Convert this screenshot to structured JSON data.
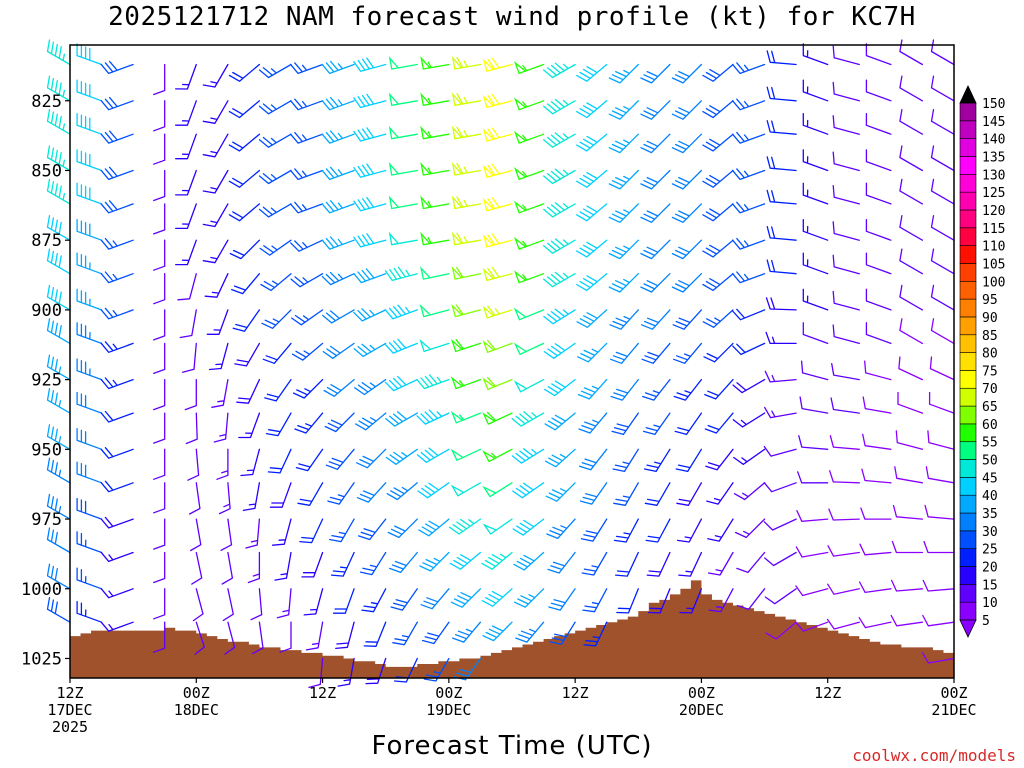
{
  "title": "2025121712 NAM forecast wind profile (kt) for KC7H",
  "xlabel": "Forecast Time (UTC)",
  "credit": "coolwx.com/models",
  "colors": {
    "ground": "#a0522d",
    "bins": [
      "#8a00ff",
      "#6000ff",
      "#2800ff",
      "#0020ff",
      "#0050ff",
      "#0080ff",
      "#00a8ff",
      "#00d0ff",
      "#00e8d8",
      "#00ff80",
      "#20ff00",
      "#80ff00",
      "#d0ff00",
      "#ffff00",
      "#ffe000",
      "#ffc000",
      "#ffa000",
      "#ff8000",
      "#ff6000",
      "#ff4000",
      "#ff1000",
      "#ff0040",
      "#ff0080",
      "#ff00b0",
      "#ff00d8",
      "#ff00ff",
      "#e000e0",
      "#c000c0",
      "#a000a0",
      "#800080"
    ]
  },
  "chart_data": {
    "type": "wind_barb_time_height",
    "title": "2025121712 NAM forecast wind profile (kt) for KC7H",
    "xlabel": "Forecast Time (UTC)",
    "units": "kt",
    "x_range_hours": [
      0,
      84
    ],
    "y_range_hpa": [
      805,
      1032
    ],
    "y_inverted": true,
    "x_ticks": [
      {
        "hour": 0,
        "line1": "12Z",
        "line2": "17DEC",
        "line3": "2025"
      },
      {
        "hour": 12,
        "line1": "00Z",
        "line2": "18DEC",
        "line3": ""
      },
      {
        "hour": 24,
        "line1": "12Z",
        "line2": "",
        "line3": ""
      },
      {
        "hour": 36,
        "line1": "00Z",
        "line2": "19DEC",
        "line3": ""
      },
      {
        "hour": 48,
        "line1": "12Z",
        "line2": "",
        "line3": ""
      },
      {
        "hour": 60,
        "line1": "00Z",
        "line2": "20DEC",
        "line3": ""
      },
      {
        "hour": 72,
        "line1": "12Z",
        "line2": "",
        "line3": ""
      },
      {
        "hour": 84,
        "line1": "00Z",
        "line2": "21DEC",
        "line3": ""
      }
    ],
    "y_ticks": [
      825,
      850,
      875,
      900,
      925,
      950,
      975,
      1000,
      1025
    ],
    "colorbar_levels": [
      5,
      10,
      15,
      20,
      25,
      30,
      35,
      40,
      45,
      50,
      55,
      60,
      65,
      70,
      75,
      80,
      85,
      90,
      95,
      100,
      105,
      110,
      115,
      120,
      125,
      130,
      135,
      140,
      145,
      150
    ],
    "surface_pressure": {
      "hours": [
        0,
        1,
        2,
        3,
        4,
        5,
        6,
        7,
        8,
        9,
        10,
        11,
        12,
        13,
        14,
        15,
        16,
        17,
        18,
        19,
        20,
        21,
        22,
        23,
        24,
        25,
        26,
        27,
        28,
        29,
        30,
        31,
        32,
        33,
        34,
        35,
        36,
        37,
        38,
        39,
        40,
        41,
        42,
        43,
        44,
        45,
        46,
        47,
        48,
        49,
        50,
        51,
        52,
        53,
        54,
        55,
        56,
        57,
        58,
        59,
        60,
        61,
        62,
        63,
        64,
        65,
        66,
        67,
        68,
        69,
        70,
        71,
        72,
        73,
        74,
        75,
        76,
        77,
        78,
        79,
        80,
        81,
        82,
        83,
        84
      ],
      "hpa": [
        1017,
        1016,
        1015,
        1015,
        1015,
        1015,
        1015,
        1015,
        1015,
        1014,
        1015,
        1015,
        1016,
        1017,
        1018,
        1019,
        1019,
        1020,
        1021,
        1021,
        1022,
        1022,
        1023,
        1023,
        1024,
        1024,
        1025,
        1026,
        1026,
        1027,
        1028,
        1028,
        1028,
        1027,
        1027,
        1026,
        1026,
        1025,
        1025,
        1024,
        1023,
        1022,
        1021,
        1020,
        1019,
        1018,
        1017,
        1016,
        1015,
        1014,
        1013,
        1012,
        1011,
        1010,
        1008,
        1005,
        1004,
        1002,
        1000,
        997,
        1002,
        1004,
        1005,
        1006,
        1007,
        1008,
        1009,
        1010,
        1011,
        1012,
        1013,
        1014,
        1015,
        1016,
        1017,
        1018,
        1019,
        1020,
        1020,
        1021,
        1021,
        1021,
        1022,
        1023,
        1023
      ]
    },
    "time_hours": [
      0,
      3,
      6,
      9,
      12,
      15,
      18,
      21,
      24,
      27,
      30,
      33,
      36,
      39,
      42,
      45,
      48,
      51,
      54,
      57,
      60,
      63,
      66,
      69,
      72,
      75,
      78,
      81,
      84
    ],
    "levels_hpa": [
      812,
      825,
      837,
      850,
      862,
      875,
      887,
      900,
      912,
      925,
      937,
      950,
      962,
      975,
      987,
      1000,
      1012,
      1025
    ],
    "speed_kt": [
      [
        45,
        40,
        28,
        10,
        15,
        15,
        20,
        25,
        25,
        35,
        40,
        50,
        55,
        65,
        70,
        55,
        45,
        40,
        35,
        32,
        30,
        28,
        25,
        20,
        15,
        12,
        10,
        10,
        10
      ],
      [
        45,
        40,
        28,
        10,
        15,
        15,
        20,
        25,
        25,
        35,
        40,
        50,
        55,
        65,
        70,
        55,
        45,
        40,
        35,
        32,
        30,
        28,
        25,
        20,
        15,
        12,
        10,
        10,
        10
      ],
      [
        45,
        40,
        28,
        10,
        15,
        15,
        20,
        25,
        25,
        35,
        40,
        50,
        55,
        65,
        70,
        55,
        45,
        40,
        35,
        32,
        30,
        28,
        25,
        20,
        15,
        12,
        10,
        10,
        10
      ],
      [
        45,
        40,
        28,
        10,
        15,
        15,
        20,
        25,
        25,
        35,
        40,
        50,
        55,
        65,
        70,
        55,
        45,
        40,
        35,
        32,
        30,
        28,
        25,
        20,
        15,
        12,
        10,
        10,
        10
      ],
      [
        45,
        40,
        28,
        10,
        15,
        15,
        20,
        25,
        25,
        35,
        40,
        50,
        55,
        65,
        70,
        55,
        45,
        40,
        35,
        32,
        30,
        28,
        25,
        20,
        15,
        12,
        10,
        10,
        10
      ],
      [
        42,
        38,
        26,
        10,
        15,
        15,
        20,
        25,
        25,
        35,
        40,
        48,
        55,
        65,
        70,
        55,
        45,
        40,
        35,
        32,
        30,
        28,
        25,
        20,
        15,
        12,
        10,
        10,
        10
      ],
      [
        40,
        36,
        25,
        10,
        12,
        15,
        20,
        25,
        25,
        33,
        38,
        46,
        52,
        62,
        68,
        55,
        45,
        40,
        35,
        32,
        30,
        28,
        25,
        20,
        15,
        12,
        10,
        10,
        10
      ],
      [
        40,
        35,
        25,
        10,
        12,
        15,
        20,
        25,
        25,
        32,
        36,
        44,
        50,
        60,
        65,
        52,
        43,
        38,
        33,
        30,
        28,
        25,
        22,
        18,
        15,
        12,
        10,
        10,
        10
      ],
      [
        38,
        34,
        24,
        10,
        12,
        15,
        18,
        22,
        25,
        30,
        35,
        42,
        48,
        58,
        62,
        50,
        42,
        36,
        32,
        28,
        25,
        22,
        20,
        15,
        12,
        10,
        10,
        8,
        8
      ],
      [
        37,
        33,
        23,
        10,
        12,
        14,
        18,
        22,
        24,
        30,
        34,
        40,
        46,
        56,
        60,
        48,
        40,
        35,
        30,
        26,
        24,
        20,
        18,
        14,
        12,
        10,
        8,
        8,
        8
      ],
      [
        36,
        32,
        22,
        10,
        12,
        14,
        17,
        21,
        23,
        29,
        33,
        38,
        44,
        53,
        58,
        46,
        38,
        33,
        28,
        25,
        22,
        20,
        17,
        13,
        10,
        10,
        8,
        8,
        8
      ],
      [
        35,
        30,
        20,
        10,
        12,
        14,
        16,
        20,
        22,
        28,
        32,
        36,
        42,
        50,
        55,
        44,
        36,
        31,
        27,
        24,
        20,
        18,
        15,
        12,
        10,
        8,
        8,
        8,
        8
      ],
      [
        34,
        30,
        20,
        10,
        10,
        13,
        15,
        18,
        21,
        27,
        30,
        34,
        40,
        48,
        52,
        42,
        35,
        30,
        26,
        22,
        18,
        16,
        14,
        12,
        10,
        8,
        8,
        8,
        8
      ],
      [
        33,
        28,
        18,
        10,
        10,
        12,
        14,
        17,
        20,
        25,
        28,
        32,
        38,
        45,
        48,
        40,
        33,
        28,
        24,
        20,
        17,
        15,
        13,
        10,
        8,
        8,
        8,
        8,
        8
      ],
      [
        32,
        27,
        17,
        10,
        10,
        11,
        13,
        16,
        18,
        23,
        26,
        30,
        35,
        42,
        45,
        38,
        31,
        26,
        22,
        19,
        16,
        14,
        12,
        10,
        8,
        8,
        8,
        8,
        8
      ],
      [
        30,
        25,
        16,
        10,
        10,
        10,
        12,
        14,
        16,
        20,
        24,
        28,
        32,
        38,
        42,
        36,
        30,
        25,
        21,
        18,
        15,
        13,
        11,
        10,
        8,
        8,
        8,
        8,
        8
      ],
      [
        28,
        23,
        15,
        10,
        10,
        10,
        11,
        12,
        14,
        18,
        21,
        25,
        28,
        34,
        38,
        33,
        28,
        23,
        20,
        17,
        14,
        12,
        10,
        8,
        8,
        8,
        8,
        8,
        8
      ],
      [
        25,
        20,
        14,
        10,
        10,
        10,
        10,
        10,
        12,
        15,
        18,
        22,
        25,
        30,
        35,
        30,
        25,
        21,
        18,
        15,
        13,
        11,
        10,
        8,
        8,
        8,
        8,
        8,
        8
      ]
    ],
    "direction_deg": [
      [
        300,
        290,
        250,
        180,
        200,
        210,
        230,
        240,
        250,
        250,
        255,
        260,
        260,
        260,
        255,
        250,
        240,
        230,
        225,
        225,
        225,
        230,
        250,
        275,
        290,
        285,
        290,
        300,
        300
      ],
      [
        300,
        290,
        250,
        180,
        200,
        210,
        230,
        240,
        250,
        250,
        255,
        260,
        260,
        260,
        255,
        250,
        240,
        230,
        225,
        225,
        225,
        230,
        250,
        275,
        290,
        285,
        290,
        300,
        300
      ],
      [
        300,
        290,
        250,
        180,
        200,
        210,
        230,
        240,
        250,
        250,
        255,
        260,
        260,
        260,
        255,
        250,
        240,
        230,
        225,
        225,
        225,
        230,
        250,
        275,
        290,
        285,
        290,
        300,
        300
      ],
      [
        300,
        290,
        250,
        180,
        200,
        210,
        230,
        240,
        250,
        250,
        255,
        260,
        260,
        260,
        255,
        250,
        240,
        230,
        225,
        225,
        225,
        230,
        250,
        275,
        290,
        285,
        290,
        300,
        300
      ],
      [
        300,
        290,
        250,
        180,
        200,
        210,
        230,
        240,
        250,
        250,
        255,
        260,
        260,
        260,
        255,
        250,
        240,
        230,
        225,
        225,
        225,
        230,
        250,
        275,
        290,
        285,
        290,
        300,
        300
      ],
      [
        300,
        290,
        250,
        180,
        200,
        210,
        225,
        235,
        245,
        250,
        255,
        260,
        260,
        260,
        255,
        250,
        240,
        230,
        225,
        225,
        225,
        230,
        250,
        275,
        290,
        285,
        290,
        300,
        300
      ],
      [
        300,
        290,
        250,
        180,
        195,
        205,
        220,
        230,
        240,
        245,
        250,
        255,
        258,
        258,
        255,
        250,
        240,
        230,
        225,
        225,
        225,
        230,
        250,
        275,
        290,
        285,
        290,
        300,
        300
      ],
      [
        300,
        290,
        250,
        180,
        190,
        200,
        215,
        225,
        235,
        240,
        245,
        250,
        255,
        255,
        252,
        248,
        238,
        228,
        222,
        222,
        222,
        228,
        248,
        272,
        290,
        285,
        290,
        300,
        300
      ],
      [
        300,
        290,
        250,
        180,
        185,
        195,
        210,
        220,
        230,
        235,
        240,
        248,
        252,
        252,
        250,
        245,
        235,
        225,
        220,
        220,
        220,
        225,
        245,
        270,
        290,
        285,
        290,
        300,
        300
      ],
      [
        300,
        290,
        250,
        180,
        180,
        190,
        205,
        215,
        225,
        230,
        235,
        245,
        250,
        250,
        248,
        242,
        232,
        222,
        218,
        218,
        218,
        222,
        240,
        265,
        285,
        280,
        285,
        295,
        295
      ],
      [
        300,
        290,
        250,
        180,
        178,
        185,
        200,
        210,
        220,
        225,
        230,
        240,
        245,
        248,
        245,
        240,
        230,
        220,
        215,
        215,
        215,
        220,
        238,
        260,
        280,
        278,
        280,
        290,
        290
      ],
      [
        300,
        290,
        250,
        180,
        175,
        180,
        195,
        205,
        215,
        220,
        225,
        235,
        240,
        245,
        242,
        238,
        228,
        218,
        212,
        212,
        212,
        218,
        235,
        255,
        275,
        275,
        278,
        285,
        285
      ],
      [
        300,
        290,
        250,
        180,
        172,
        175,
        190,
        200,
        210,
        215,
        222,
        230,
        235,
        240,
        238,
        235,
        225,
        215,
        210,
        210,
        210,
        215,
        230,
        250,
        270,
        272,
        275,
        280,
        280
      ],
      [
        300,
        290,
        250,
        180,
        170,
        172,
        185,
        195,
        205,
        210,
        218,
        225,
        230,
        235,
        235,
        232,
        222,
        212,
        208,
        208,
        208,
        212,
        225,
        245,
        265,
        268,
        270,
        275,
        275
      ],
      [
        300,
        290,
        250,
        180,
        168,
        170,
        180,
        190,
        200,
        205,
        212,
        220,
        225,
        230,
        230,
        228,
        218,
        210,
        205,
        205,
        205,
        210,
        220,
        240,
        260,
        262,
        265,
        270,
        270
      ],
      [
        300,
        290,
        250,
        180,
        165,
        168,
        175,
        185,
        195,
        200,
        208,
        215,
        220,
        225,
        228,
        225,
        215,
        208,
        202,
        202,
        202,
        208,
        218,
        235,
        255,
        258,
        262,
        265,
        265
      ],
      [
        300,
        290,
        250,
        180,
        162,
        165,
        172,
        180,
        190,
        195,
        202,
        210,
        215,
        220,
        225,
        220,
        212,
        205,
        200,
        200,
        200,
        205,
        215,
        230,
        250,
        255,
        258,
        262,
        262
      ],
      [
        300,
        290,
        250,
        180,
        160,
        162,
        170,
        175,
        185,
        190,
        198,
        205,
        210,
        215,
        220,
        218,
        210,
        202,
        198,
        198,
        198,
        202,
        212,
        225,
        245,
        250,
        255,
        260,
        260
      ]
    ]
  }
}
